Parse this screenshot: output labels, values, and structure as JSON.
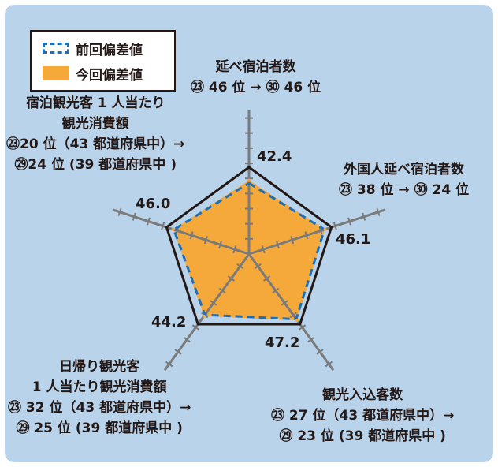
{
  "legend": {
    "previous": "前回偏差値",
    "current": "今回偏差値"
  },
  "colors": {
    "background": "#b9d3ea",
    "fill": "#f6a93b",
    "previous_line": "#1f6fb8",
    "outline": "#231815",
    "axis": "#7a7a7a"
  },
  "chart_data": {
    "type": "radar",
    "axes": [
      {
        "name": "延べ宿泊者数",
        "rank_lines": [
          "延べ宿泊者数",
          "㉓ 46 位 → ㉚ 46 位"
        ],
        "value_label": "42.4"
      },
      {
        "name": "外国人延べ宿泊者数",
        "rank_lines": [
          "外国人延べ宿泊者数",
          "㉓ 38 位 → ㉚ 24 位"
        ],
        "value_label": "46.1"
      },
      {
        "name": "観光入込客数",
        "rank_lines": [
          "観光入込客数",
          "㉓ 27 位（43 都道府県中）→",
          "㉙ 23 位 (39 都道府県中 )"
        ],
        "value_label": "47.2"
      },
      {
        "name": "日帰り観光客 1 人当たり観光消費額",
        "rank_lines": [
          "日帰り観光客",
          "1 人当たり観光消費額",
          "㉓ 32 位（43 都道府県中）→",
          "㉙ 25 位 (39 都道府県中 )"
        ],
        "value_label": "44.2"
      },
      {
        "name": "宿泊観光客 1 人当たり観光消費額",
        "rank_lines": [
          "宿泊観光客 1 人当たり",
          "観光消費額",
          "㉓20 位（43 都道府県中）→",
          "㉙24 位 (39 都道府県中 )"
        ],
        "value_label": "46.0"
      }
    ],
    "series": [
      {
        "name": "前回偏差値",
        "style": "dashed",
        "values": [
          40.8,
          45.8,
          46.4,
          43.3,
          45.6
        ]
      },
      {
        "name": "今回偏差値",
        "style": "filled",
        "values": [
          42.4,
          46.1,
          47.2,
          44.2,
          46.0
        ]
      }
    ],
    "outline_value": 50,
    "ticks_per_axis": 9
  }
}
